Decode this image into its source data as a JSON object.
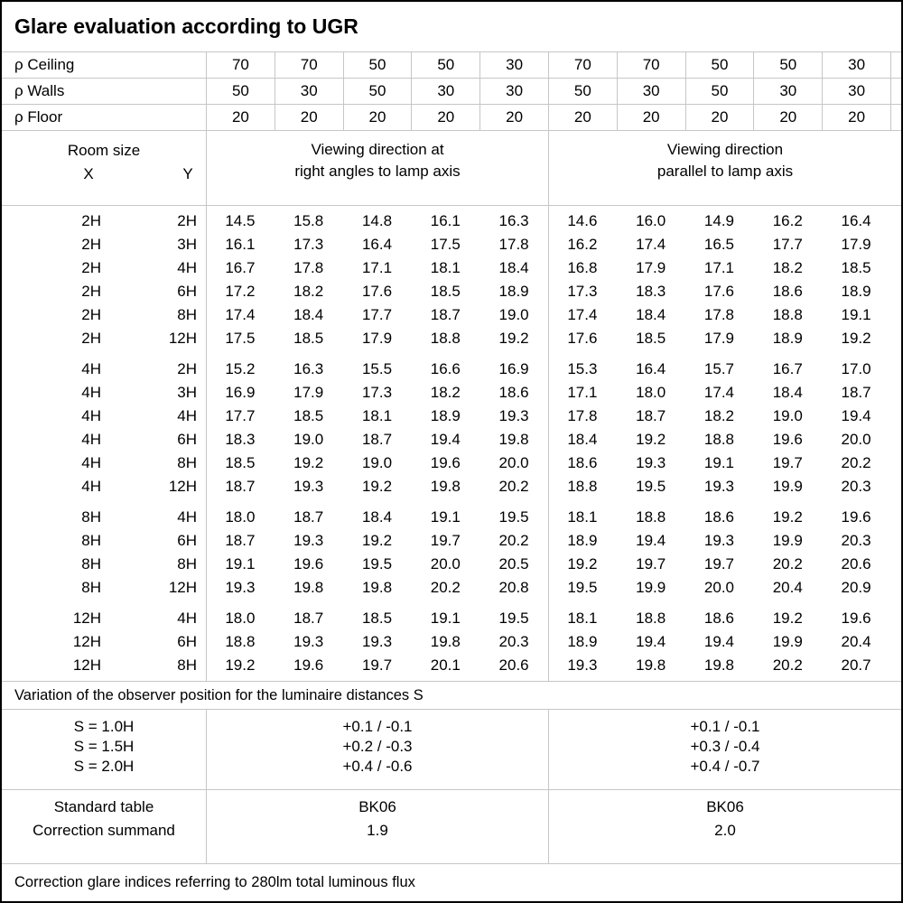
{
  "title": "Glare evaluation according to UGR",
  "colors": {
    "grid_line": "#c6c6c6",
    "outer_border": "#000000",
    "text": "#000000",
    "background": "#ffffff"
  },
  "reflectance": {
    "rows": [
      {
        "label": "ρ Ceiling",
        "values": [
          "70",
          "70",
          "50",
          "50",
          "30",
          "70",
          "70",
          "50",
          "50",
          "30"
        ]
      },
      {
        "label": "ρ Walls",
        "values": [
          "50",
          "30",
          "50",
          "30",
          "30",
          "50",
          "30",
          "50",
          "30",
          "30"
        ]
      },
      {
        "label": "ρ Floor",
        "values": [
          "20",
          "20",
          "20",
          "20",
          "20",
          "20",
          "20",
          "20",
          "20",
          "20"
        ]
      }
    ]
  },
  "header": {
    "room_size": "Room size",
    "x_label": "X",
    "y_label": "Y",
    "right_angles_line1": "Viewing direction at",
    "right_angles_line2": "right angles to lamp axis",
    "parallel_line1": "Viewing direction",
    "parallel_line2": "parallel to lamp axis"
  },
  "ugr_blocks": [
    {
      "rows": [
        {
          "x": "2H",
          "y": "2H",
          "values": [
            "14.5",
            "15.8",
            "14.8",
            "16.1",
            "16.3",
            "14.6",
            "16.0",
            "14.9",
            "16.2",
            "16.4"
          ]
        },
        {
          "x": "2H",
          "y": "3H",
          "values": [
            "16.1",
            "17.3",
            "16.4",
            "17.5",
            "17.8",
            "16.2",
            "17.4",
            "16.5",
            "17.7",
            "17.9"
          ]
        },
        {
          "x": "2H",
          "y": "4H",
          "values": [
            "16.7",
            "17.8",
            "17.1",
            "18.1",
            "18.4",
            "16.8",
            "17.9",
            "17.1",
            "18.2",
            "18.5"
          ]
        },
        {
          "x": "2H",
          "y": "6H",
          "values": [
            "17.2",
            "18.2",
            "17.6",
            "18.5",
            "18.9",
            "17.3",
            "18.3",
            "17.6",
            "18.6",
            "18.9"
          ]
        },
        {
          "x": "2H",
          "y": "8H",
          "values": [
            "17.4",
            "18.4",
            "17.7",
            "18.7",
            "19.0",
            "17.4",
            "18.4",
            "17.8",
            "18.8",
            "19.1"
          ]
        },
        {
          "x": "2H",
          "y": "12H",
          "values": [
            "17.5",
            "18.5",
            "17.9",
            "18.8",
            "19.2",
            "17.6",
            "18.5",
            "17.9",
            "18.9",
            "19.2"
          ]
        }
      ]
    },
    {
      "rows": [
        {
          "x": "4H",
          "y": "2H",
          "values": [
            "15.2",
            "16.3",
            "15.5",
            "16.6",
            "16.9",
            "15.3",
            "16.4",
            "15.7",
            "16.7",
            "17.0"
          ]
        },
        {
          "x": "4H",
          "y": "3H",
          "values": [
            "16.9",
            "17.9",
            "17.3",
            "18.2",
            "18.6",
            "17.1",
            "18.0",
            "17.4",
            "18.4",
            "18.7"
          ]
        },
        {
          "x": "4H",
          "y": "4H",
          "values": [
            "17.7",
            "18.5",
            "18.1",
            "18.9",
            "19.3",
            "17.8",
            "18.7",
            "18.2",
            "19.0",
            "19.4"
          ]
        },
        {
          "x": "4H",
          "y": "6H",
          "values": [
            "18.3",
            "19.0",
            "18.7",
            "19.4",
            "19.8",
            "18.4",
            "19.2",
            "18.8",
            "19.6",
            "20.0"
          ]
        },
        {
          "x": "4H",
          "y": "8H",
          "values": [
            "18.5",
            "19.2",
            "19.0",
            "19.6",
            "20.0",
            "18.6",
            "19.3",
            "19.1",
            "19.7",
            "20.2"
          ]
        },
        {
          "x": "4H",
          "y": "12H",
          "values": [
            "18.7",
            "19.3",
            "19.2",
            "19.8",
            "20.2",
            "18.8",
            "19.5",
            "19.3",
            "19.9",
            "20.3"
          ]
        }
      ]
    },
    {
      "rows": [
        {
          "x": "8H",
          "y": "4H",
          "values": [
            "18.0",
            "18.7",
            "18.4",
            "19.1",
            "19.5",
            "18.1",
            "18.8",
            "18.6",
            "19.2",
            "19.6"
          ]
        },
        {
          "x": "8H",
          "y": "6H",
          "values": [
            "18.7",
            "19.3",
            "19.2",
            "19.7",
            "20.2",
            "18.9",
            "19.4",
            "19.3",
            "19.9",
            "20.3"
          ]
        },
        {
          "x": "8H",
          "y": "8H",
          "values": [
            "19.1",
            "19.6",
            "19.5",
            "20.0",
            "20.5",
            "19.2",
            "19.7",
            "19.7",
            "20.2",
            "20.6"
          ]
        },
        {
          "x": "8H",
          "y": "12H",
          "values": [
            "19.3",
            "19.8",
            "19.8",
            "20.2",
            "20.8",
            "19.5",
            "19.9",
            "20.0",
            "20.4",
            "20.9"
          ]
        }
      ]
    },
    {
      "rows": [
        {
          "x": "12H",
          "y": "4H",
          "values": [
            "18.0",
            "18.7",
            "18.5",
            "19.1",
            "19.5",
            "18.1",
            "18.8",
            "18.6",
            "19.2",
            "19.6"
          ]
        },
        {
          "x": "12H",
          "y": "6H",
          "values": [
            "18.8",
            "19.3",
            "19.3",
            "19.8",
            "20.3",
            "18.9",
            "19.4",
            "19.4",
            "19.9",
            "20.4"
          ]
        },
        {
          "x": "12H",
          "y": "8H",
          "values": [
            "19.2",
            "19.6",
            "19.7",
            "20.1",
            "20.6",
            "19.3",
            "19.8",
            "19.8",
            "20.2",
            "20.7"
          ]
        }
      ]
    }
  ],
  "variation_note": "Variation of the observer position for the luminaire distances S",
  "s_variation": {
    "rows": [
      {
        "label": "S = 1.0H",
        "right_angles": "+0.1 / -0.1",
        "parallel": "+0.1 / -0.1"
      },
      {
        "label": "S = 1.5H",
        "right_angles": "+0.2 / -0.3",
        "parallel": "+0.3 / -0.4"
      },
      {
        "label": "S = 2.0H",
        "right_angles": "+0.4 / -0.6",
        "parallel": "+0.4 / -0.7"
      }
    ]
  },
  "standard": {
    "labels": [
      "Standard table",
      "Correction summand"
    ],
    "right_angles": [
      "BK06",
      "1.9"
    ],
    "parallel": [
      "BK06",
      "2.0"
    ]
  },
  "footer_note": "Correction glare indices referring to 280lm total luminous flux"
}
